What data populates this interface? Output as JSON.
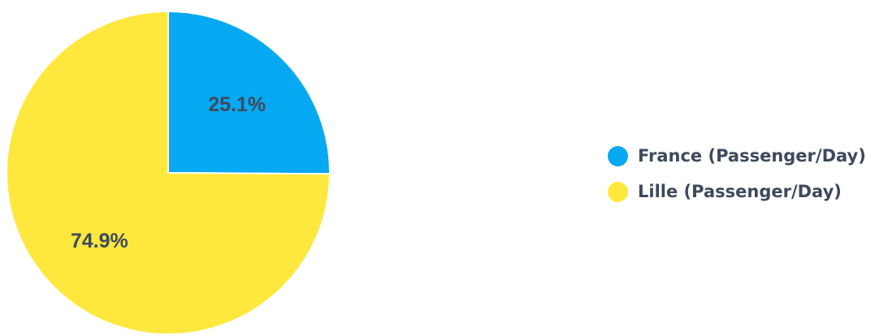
{
  "chart_data": {
    "type": "pie",
    "title": "",
    "legend_position": "right",
    "slices": [
      {
        "name": "France (Passenger/Day)",
        "value": 25.1,
        "label": "25.1%",
        "color": "#07a9f3"
      },
      {
        "name": "Lille (Passenger/Day)",
        "value": 74.9,
        "label": "74.9%",
        "color": "#ffe83d"
      }
    ]
  }
}
